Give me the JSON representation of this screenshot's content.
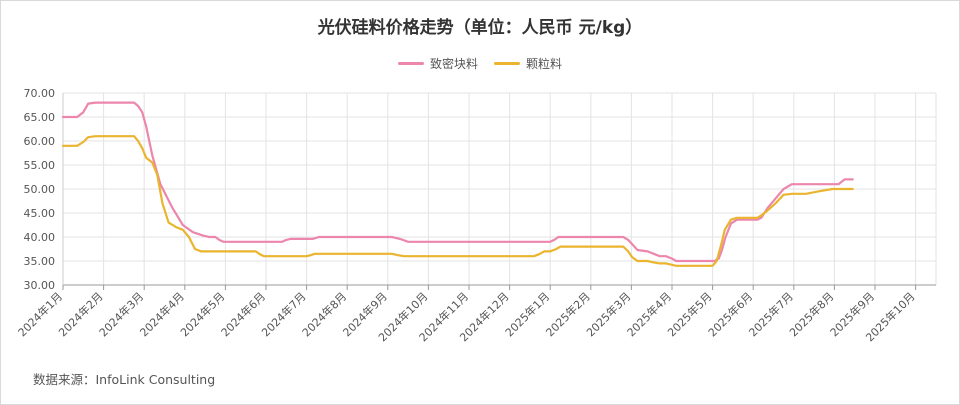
{
  "chart_data": {
    "type": "line",
    "title": "光伏硅料价格走势（单位：人民币 元/kg）",
    "source": "数据来源：InfoLink Consulting",
    "ylim": [
      30,
      70
    ],
    "y_ticks": [
      "30.00",
      "35.00",
      "40.00",
      "45.00",
      "50.00",
      "55.00",
      "60.00",
      "65.00",
      "70.00"
    ],
    "x_ticks": [
      "2024年1月",
      "2024年2月",
      "2024年3月",
      "2024年4月",
      "2024年5月",
      "2024年6月",
      "2024年7月",
      "2024年8月",
      "2024年9月",
      "2024年10月",
      "2024年11月",
      "2024年12月",
      "2025年1月",
      "2025年2月",
      "2025年3月",
      "2025年4月",
      "2025年5月",
      "2025年6月",
      "2025年7月",
      "2025年8月",
      "2025年9月",
      "2025年10月"
    ],
    "grid": true,
    "legend_position": "top-center",
    "series": [
      {
        "name": "致密块料",
        "color": "#ec86ad",
        "values": [
          [
            0,
            65
          ],
          [
            0.35,
            65
          ],
          [
            0.5,
            66
          ],
          [
            0.62,
            67.8
          ],
          [
            0.8,
            68
          ],
          [
            1.0,
            68
          ],
          [
            1.4,
            68
          ],
          [
            1.75,
            68
          ],
          [
            1.85,
            67.3
          ],
          [
            1.95,
            66
          ],
          [
            2.05,
            63
          ],
          [
            2.2,
            57
          ],
          [
            2.4,
            51
          ],
          [
            2.7,
            46
          ],
          [
            2.95,
            42.5
          ],
          [
            3.2,
            41
          ],
          [
            3.45,
            40.3
          ],
          [
            3.6,
            40
          ],
          [
            3.75,
            40
          ],
          [
            3.85,
            39.4
          ],
          [
            3.95,
            39
          ],
          [
            4.2,
            39
          ],
          [
            5,
            39
          ],
          [
            5.4,
            39
          ],
          [
            5.5,
            39.4
          ],
          [
            5.6,
            39.6
          ],
          [
            6,
            39.6
          ],
          [
            6.15,
            39.6
          ],
          [
            6.3,
            40
          ],
          [
            6.5,
            40
          ],
          [
            7,
            40
          ],
          [
            7.5,
            40
          ],
          [
            8.1,
            40
          ],
          [
            8.3,
            39.6
          ],
          [
            8.5,
            39
          ],
          [
            9,
            39
          ],
          [
            10,
            39
          ],
          [
            11,
            39
          ],
          [
            12,
            39
          ],
          [
            12.1,
            39.4
          ],
          [
            12.2,
            40
          ],
          [
            12.5,
            40
          ],
          [
            13,
            40
          ],
          [
            13.6,
            40
          ],
          [
            13.8,
            40
          ],
          [
            13.92,
            39.4
          ],
          [
            14.02,
            38.5
          ],
          [
            14.15,
            37.3
          ],
          [
            14.4,
            37
          ],
          [
            14.55,
            36.5
          ],
          [
            14.7,
            36
          ],
          [
            14.85,
            36
          ],
          [
            15,
            35.5
          ],
          [
            15.1,
            35
          ],
          [
            15.5,
            35
          ],
          [
            15.75,
            35
          ],
          [
            15.9,
            35
          ],
          [
            16.05,
            35
          ],
          [
            16.15,
            35.5
          ],
          [
            16.22,
            37
          ],
          [
            16.32,
            40
          ],
          [
            16.45,
            42.8
          ],
          [
            16.6,
            43.6
          ],
          [
            16.9,
            43.6
          ],
          [
            17.1,
            43.6
          ],
          [
            17.2,
            44
          ],
          [
            17.35,
            46
          ],
          [
            17.55,
            48
          ],
          [
            17.75,
            50
          ],
          [
            17.95,
            51
          ],
          [
            18.3,
            51
          ],
          [
            18.6,
            51
          ],
          [
            18.95,
            51
          ],
          [
            19.1,
            51
          ],
          [
            19.25,
            52
          ],
          [
            19.45,
            52
          ]
        ]
      },
      {
        "name": "颗粒料",
        "color": "#eab42e",
        "values": [
          [
            0,
            59
          ],
          [
            0.35,
            59
          ],
          [
            0.5,
            59.8
          ],
          [
            0.62,
            60.8
          ],
          [
            0.8,
            61
          ],
          [
            1.0,
            61
          ],
          [
            1.4,
            61
          ],
          [
            1.75,
            61
          ],
          [
            1.85,
            60
          ],
          [
            1.95,
            58.5
          ],
          [
            2.05,
            56.5
          ],
          [
            2.2,
            55.5
          ],
          [
            2.32,
            53
          ],
          [
            2.45,
            47
          ],
          [
            2.6,
            43
          ],
          [
            2.8,
            42
          ],
          [
            2.95,
            41.5
          ],
          [
            3.1,
            40
          ],
          [
            3.25,
            37.5
          ],
          [
            3.4,
            37
          ],
          [
            3.6,
            37
          ],
          [
            4,
            37
          ],
          [
            4.5,
            37
          ],
          [
            4.75,
            37
          ],
          [
            4.85,
            36.4
          ],
          [
            4.95,
            36
          ],
          [
            5.5,
            36
          ],
          [
            6,
            36
          ],
          [
            6.1,
            36.2
          ],
          [
            6.2,
            36.5
          ],
          [
            6.5,
            36.5
          ],
          [
            7,
            36.5
          ],
          [
            7.5,
            36.5
          ],
          [
            8.1,
            36.5
          ],
          [
            8.25,
            36.2
          ],
          [
            8.4,
            36
          ],
          [
            9,
            36
          ],
          [
            10,
            36
          ],
          [
            11,
            36
          ],
          [
            11.6,
            36
          ],
          [
            11.75,
            36.5
          ],
          [
            11.85,
            37
          ],
          [
            12,
            37
          ],
          [
            12.15,
            37.5
          ],
          [
            12.25,
            38
          ],
          [
            12.5,
            38
          ],
          [
            13,
            38
          ],
          [
            13.6,
            38
          ],
          [
            13.8,
            38
          ],
          [
            13.92,
            37
          ],
          [
            14.02,
            35.8
          ],
          [
            14.15,
            35
          ],
          [
            14.4,
            35
          ],
          [
            14.55,
            34.7
          ],
          [
            14.7,
            34.5
          ],
          [
            14.85,
            34.5
          ],
          [
            15,
            34.2
          ],
          [
            15.1,
            34
          ],
          [
            15.5,
            34
          ],
          [
            15.75,
            34
          ],
          [
            15.9,
            34
          ],
          [
            16,
            34
          ],
          [
            16.1,
            35
          ],
          [
            16.2,
            38
          ],
          [
            16.3,
            41.5
          ],
          [
            16.45,
            43.6
          ],
          [
            16.6,
            44
          ],
          [
            16.9,
            44
          ],
          [
            17.1,
            44
          ],
          [
            17.2,
            44.5
          ],
          [
            17.35,
            45.5
          ],
          [
            17.55,
            47
          ],
          [
            17.75,
            48.8
          ],
          [
            17.95,
            49
          ],
          [
            18.3,
            49
          ],
          [
            18.6,
            49.5
          ],
          [
            18.95,
            50
          ],
          [
            19.1,
            50
          ],
          [
            19.25,
            50
          ],
          [
            19.45,
            50
          ]
        ]
      }
    ]
  }
}
